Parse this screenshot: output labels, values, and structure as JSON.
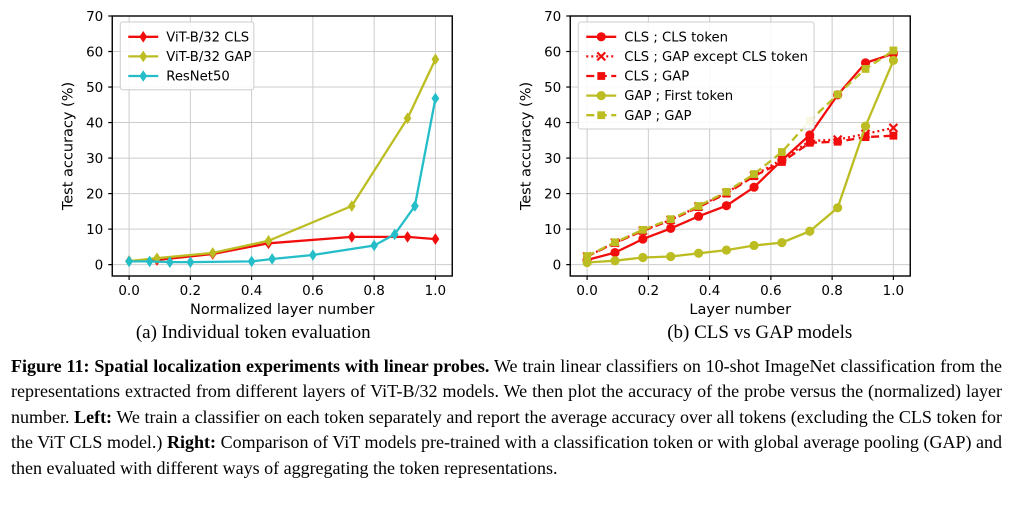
{
  "chart_data": [
    {
      "type": "line",
      "name": "individual-token-evaluation",
      "subcaption": "(a) Individual token evaluation",
      "xlabel": "Normalized layer number",
      "ylabel": "Test accuracy (%)",
      "xlim": [
        -0.055,
        1.055
      ],
      "ylim": [
        -3.2,
        70
      ],
      "xticks": [
        0.0,
        0.2,
        0.4,
        0.6,
        0.8,
        1.0
      ],
      "xtick_labels": [
        "0.0",
        "0.2",
        "0.4",
        "0.6",
        "0.8",
        "1.0"
      ],
      "yticks": [
        0,
        10,
        20,
        30,
        40,
        50,
        60,
        70
      ],
      "ytick_labels": [
        "0",
        "10",
        "20",
        "30",
        "40",
        "50",
        "60",
        "70"
      ],
      "grid": true,
      "legend_position": "upper-left",
      "series": [
        {
          "name": "ViT-B/32 CLS",
          "color": "#f20d0d",
          "linestyle": "solid",
          "marker": "diamond",
          "x": [
            0.0,
            0.091,
            0.273,
            0.455,
            0.727,
            0.909,
            1.0
          ],
          "y": [
            1.0,
            1.3,
            3.0,
            6.0,
            7.8,
            7.8,
            7.2
          ]
        },
        {
          "name": "ViT-B/32 GAP",
          "color": "#bcbd22",
          "linestyle": "solid",
          "marker": "diamond",
          "x": [
            0.0,
            0.091,
            0.273,
            0.455,
            0.727,
            0.909,
            1.0
          ],
          "y": [
            1.0,
            1.8,
            3.3,
            6.7,
            16.5,
            41.2,
            57.8
          ]
        },
        {
          "name": "ResNet50",
          "color": "#25bec8",
          "linestyle": "solid",
          "marker": "diamond",
          "x": [
            0.0,
            0.067,
            0.133,
            0.2,
            0.4,
            0.467,
            0.6,
            0.8,
            0.867,
            0.933,
            1.0
          ],
          "y": [
            0.9,
            0.9,
            0.7,
            0.7,
            0.9,
            1.6,
            2.7,
            5.4,
            8.5,
            16.5,
            46.8
          ]
        }
      ]
    },
    {
      "type": "line",
      "name": "cls-vs-gap-models",
      "subcaption": "(b) CLS vs GAP models",
      "xlabel": "Layer number",
      "ylabel": "Test accuracy (%)",
      "xlim": [
        -0.055,
        1.055
      ],
      "ylim": [
        -3.2,
        70
      ],
      "xticks": [
        0.0,
        0.2,
        0.4,
        0.6,
        0.8,
        1.0
      ],
      "xtick_labels": [
        "0.0",
        "0.2",
        "0.4",
        "0.6",
        "0.8",
        "1.0"
      ],
      "yticks": [
        0,
        10,
        20,
        30,
        40,
        50,
        60,
        70
      ],
      "ytick_labels": [
        "0",
        "10",
        "20",
        "30",
        "40",
        "50",
        "60",
        "70"
      ],
      "grid": true,
      "legend_position": "upper-left",
      "series": [
        {
          "name": "CLS ; CLS token",
          "color": "#f20d0d",
          "linestyle": "solid",
          "marker": "circle",
          "x": [
            0.0,
            0.091,
            0.182,
            0.273,
            0.364,
            0.455,
            0.545,
            0.636,
            0.727,
            0.818,
            0.909,
            1.0
          ],
          "y": [
            1.3,
            3.4,
            7.2,
            10.2,
            13.6,
            16.6,
            21.8,
            29.4,
            36.5,
            47.8,
            56.8,
            59.4
          ]
        },
        {
          "name": "CLS ; GAP except CLS token",
          "color": "#f20d0d",
          "linestyle": "dotted",
          "marker": "x",
          "x": [
            0.0,
            0.091,
            0.182,
            0.273,
            0.364,
            0.455,
            0.545,
            0.636,
            0.727,
            0.818,
            0.909,
            1.0
          ],
          "y": [
            2.3,
            6.2,
            9.6,
            12.6,
            16.4,
            20.2,
            25.1,
            29.6,
            34.8,
            35.2,
            36.8,
            38.5
          ]
        },
        {
          "name": "CLS ; GAP",
          "color": "#f20d0d",
          "linestyle": "dashed",
          "marker": "square",
          "x": [
            0.0,
            0.091,
            0.182,
            0.273,
            0.364,
            0.455,
            0.545,
            0.636,
            0.727,
            0.818,
            0.909,
            1.0
          ],
          "y": [
            2.3,
            6.1,
            9.5,
            12.5,
            16.2,
            20.0,
            24.9,
            28.9,
            34.3,
            34.6,
            35.9,
            36.3
          ]
        },
        {
          "name": "GAP ; First token",
          "color": "#bcbd22",
          "linestyle": "solid",
          "marker": "circle",
          "x": [
            0.0,
            0.091,
            0.182,
            0.273,
            0.364,
            0.455,
            0.545,
            0.636,
            0.727,
            0.818,
            0.909,
            1.0
          ],
          "y": [
            0.6,
            1.1,
            2.0,
            2.3,
            3.2,
            4.1,
            5.4,
            6.2,
            9.4,
            16.0,
            39.0,
            57.5
          ]
        },
        {
          "name": "GAP ; GAP",
          "color": "#bcbd22",
          "linestyle": "dashed",
          "marker": "square",
          "x": [
            0.0,
            0.091,
            0.182,
            0.273,
            0.364,
            0.455,
            0.545,
            0.636,
            0.727,
            0.818,
            0.909,
            1.0
          ],
          "y": [
            2.4,
            6.3,
            9.8,
            12.8,
            16.5,
            20.5,
            25.5,
            31.7,
            40.5,
            47.9,
            55.1,
            60.3
          ]
        }
      ]
    }
  ],
  "caption": {
    "bold_intro": "Figure 11: Spatial localization experiments with linear probes.",
    "part1": "We train linear classifiers on 10-shot ImageNet classification from the representations extracted from different layers of ViT-B/32 models. We then plot the accuracy of the probe versus the (normalized) layer number.",
    "left_label": "Left:",
    "part2": "We train a classifier on each token separately and report the average accuracy over all tokens (excluding the CLS token for the ViT CLS model.)",
    "right_label": "Right:",
    "part3": "Comparison of ViT models pre-trained with a classification token or with global average pooling (GAP) and then evaluated with different ways of aggregating the token representations."
  },
  "colors": {
    "red": "#f20d0d",
    "olive": "#bcbd22",
    "cyan": "#25bec8",
    "grid": "#cccccc",
    "legend_border": "#cccccc"
  }
}
